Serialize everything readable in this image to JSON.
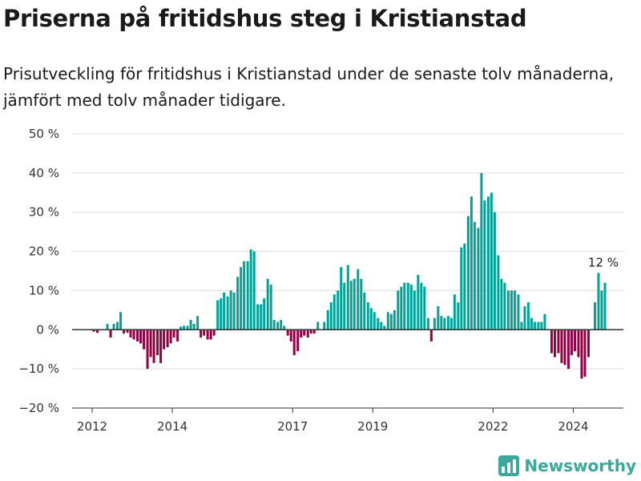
{
  "title": "Priserna på fritidshus steg i Kristianstad",
  "subtitle": "Prisutveckling för fritidshus i Kristianstad under de senaste tolv månaderna, jämfört med tolv månader tidigare.",
  "brand": {
    "name": "Newsworthy",
    "color": "#3aa89b"
  },
  "colors": {
    "positive": "#00a497",
    "negative": "#960042",
    "zero_line": "#333333",
    "grid": "#dddddd"
  },
  "chart_data": {
    "type": "bar",
    "title": "Priserna på fritidshus steg i Kristianstad",
    "xlabel": "",
    "ylabel": "",
    "ylim": [
      -20,
      50
    ],
    "yticks": [
      -20,
      -10,
      0,
      10,
      20,
      30,
      40,
      50
    ],
    "ytick_labels": [
      "−20 %",
      "−10 %",
      "0 %",
      "10 %",
      "20 %",
      "30 %",
      "40 %",
      "50 %"
    ],
    "xticks": [
      2012,
      2014,
      2017,
      2019,
      2022,
      2024
    ],
    "x_start": 2011.5,
    "x_end": 2025.25,
    "grid": true,
    "annotation": {
      "text": "12 %"
    },
    "bars": [
      {
        "x": 2012.04,
        "y": -0.5
      },
      {
        "x": 2012.13,
        "y": -0.8
      },
      {
        "x": 2012.38,
        "y": 1.5
      },
      {
        "x": 2012.46,
        "y": -2.0
      },
      {
        "x": 2012.54,
        "y": 1.5
      },
      {
        "x": 2012.63,
        "y": 2.0
      },
      {
        "x": 2012.71,
        "y": 4.5
      },
      {
        "x": 2012.79,
        "y": -1.0
      },
      {
        "x": 2012.88,
        "y": -0.8
      },
      {
        "x": 2012.96,
        "y": -2.0
      },
      {
        "x": 2013.04,
        "y": -2.5
      },
      {
        "x": 2013.13,
        "y": -3.0
      },
      {
        "x": 2013.21,
        "y": -3.5
      },
      {
        "x": 2013.29,
        "y": -5.0
      },
      {
        "x": 2013.38,
        "y": -10.0
      },
      {
        "x": 2013.46,
        "y": -7.0
      },
      {
        "x": 2013.54,
        "y": -8.5
      },
      {
        "x": 2013.63,
        "y": -6.5
      },
      {
        "x": 2013.71,
        "y": -8.5
      },
      {
        "x": 2013.79,
        "y": -5.0
      },
      {
        "x": 2013.88,
        "y": -4.5
      },
      {
        "x": 2013.96,
        "y": -3.5
      },
      {
        "x": 2014.04,
        "y": -2.0
      },
      {
        "x": 2014.13,
        "y": -3.0
      },
      {
        "x": 2014.21,
        "y": 0.8
      },
      {
        "x": 2014.29,
        "y": 1.0
      },
      {
        "x": 2014.38,
        "y": 1.0
      },
      {
        "x": 2014.46,
        "y": 2.5
      },
      {
        "x": 2014.54,
        "y": 1.5
      },
      {
        "x": 2014.63,
        "y": 3.5
      },
      {
        "x": 2014.71,
        "y": -2.0
      },
      {
        "x": 2014.79,
        "y": -1.5
      },
      {
        "x": 2014.88,
        "y": -2.5
      },
      {
        "x": 2014.96,
        "y": -2.5
      },
      {
        "x": 2015.04,
        "y": -1.5
      },
      {
        "x": 2015.13,
        "y": 7.5
      },
      {
        "x": 2015.21,
        "y": 8.0
      },
      {
        "x": 2015.29,
        "y": 9.5
      },
      {
        "x": 2015.38,
        "y": 8.5
      },
      {
        "x": 2015.46,
        "y": 10.0
      },
      {
        "x": 2015.54,
        "y": 9.5
      },
      {
        "x": 2015.63,
        "y": 13.5
      },
      {
        "x": 2015.71,
        "y": 16.0
      },
      {
        "x": 2015.79,
        "y": 17.5
      },
      {
        "x": 2015.88,
        "y": 17.5
      },
      {
        "x": 2015.96,
        "y": 20.5
      },
      {
        "x": 2016.04,
        "y": 20.0
      },
      {
        "x": 2016.13,
        "y": 6.5
      },
      {
        "x": 2016.21,
        "y": 6.5
      },
      {
        "x": 2016.29,
        "y": 8.0
      },
      {
        "x": 2016.38,
        "y": 13.0
      },
      {
        "x": 2016.46,
        "y": 11.5
      },
      {
        "x": 2016.54,
        "y": 2.5
      },
      {
        "x": 2016.63,
        "y": 2.0
      },
      {
        "x": 2016.71,
        "y": 2.5
      },
      {
        "x": 2016.79,
        "y": 1.0
      },
      {
        "x": 2016.88,
        "y": -1.5
      },
      {
        "x": 2016.96,
        "y": -3.0
      },
      {
        "x": 2017.04,
        "y": -6.5
      },
      {
        "x": 2017.13,
        "y": -5.5
      },
      {
        "x": 2017.21,
        "y": -2.0
      },
      {
        "x": 2017.29,
        "y": -1.5
      },
      {
        "x": 2017.38,
        "y": -2.0
      },
      {
        "x": 2017.46,
        "y": -1.0
      },
      {
        "x": 2017.54,
        "y": -1.0
      },
      {
        "x": 2017.63,
        "y": 2.0
      },
      {
        "x": 2017.79,
        "y": 2.0
      },
      {
        "x": 2017.88,
        "y": 5.0
      },
      {
        "x": 2017.96,
        "y": 7.0
      },
      {
        "x": 2018.04,
        "y": 9.0
      },
      {
        "x": 2018.13,
        "y": 10.0
      },
      {
        "x": 2018.21,
        "y": 16.0
      },
      {
        "x": 2018.29,
        "y": 12.0
      },
      {
        "x": 2018.38,
        "y": 16.5
      },
      {
        "x": 2018.46,
        "y": 12.5
      },
      {
        "x": 2018.54,
        "y": 13.0
      },
      {
        "x": 2018.63,
        "y": 15.5
      },
      {
        "x": 2018.71,
        "y": 13.0
      },
      {
        "x": 2018.79,
        "y": 9.5
      },
      {
        "x": 2018.88,
        "y": 7.0
      },
      {
        "x": 2018.96,
        "y": 5.5
      },
      {
        "x": 2019.04,
        "y": 4.5
      },
      {
        "x": 2019.13,
        "y": 3.0
      },
      {
        "x": 2019.21,
        "y": 2.0
      },
      {
        "x": 2019.29,
        "y": 1.0
      },
      {
        "x": 2019.38,
        "y": 4.5
      },
      {
        "x": 2019.46,
        "y": 4.0
      },
      {
        "x": 2019.54,
        "y": 5.0
      },
      {
        "x": 2019.63,
        "y": 10.0
      },
      {
        "x": 2019.71,
        "y": 11.0
      },
      {
        "x": 2019.79,
        "y": 12.0
      },
      {
        "x": 2019.88,
        "y": 12.0
      },
      {
        "x": 2019.96,
        "y": 11.5
      },
      {
        "x": 2020.04,
        "y": 10.0
      },
      {
        "x": 2020.13,
        "y": 14.0
      },
      {
        "x": 2020.21,
        "y": 12.0
      },
      {
        "x": 2020.29,
        "y": 11.0
      },
      {
        "x": 2020.38,
        "y": 3.0
      },
      {
        "x": 2020.46,
        "y": -3.0
      },
      {
        "x": 2020.54,
        "y": 3.0
      },
      {
        "x": 2020.63,
        "y": 6.0
      },
      {
        "x": 2020.71,
        "y": 3.5
      },
      {
        "x": 2020.79,
        "y": 3.0
      },
      {
        "x": 2020.88,
        "y": 3.5
      },
      {
        "x": 2020.96,
        "y": 3.0
      },
      {
        "x": 2021.04,
        "y": 9.0
      },
      {
        "x": 2021.13,
        "y": 7.0
      },
      {
        "x": 2021.21,
        "y": 21.0
      },
      {
        "x": 2021.29,
        "y": 22.0
      },
      {
        "x": 2021.38,
        "y": 29.0
      },
      {
        "x": 2021.46,
        "y": 34.0
      },
      {
        "x": 2021.54,
        "y": 27.5
      },
      {
        "x": 2021.63,
        "y": 26.0
      },
      {
        "x": 2021.71,
        "y": 40.0
      },
      {
        "x": 2021.79,
        "y": 33.0
      },
      {
        "x": 2021.88,
        "y": 34.0
      },
      {
        "x": 2021.96,
        "y": 35.0
      },
      {
        "x": 2022.04,
        "y": 30.0
      },
      {
        "x": 2022.13,
        "y": 19.0
      },
      {
        "x": 2022.21,
        "y": 13.0
      },
      {
        "x": 2022.29,
        "y": 12.0
      },
      {
        "x": 2022.38,
        "y": 10.0
      },
      {
        "x": 2022.46,
        "y": 10.0
      },
      {
        "x": 2022.54,
        "y": 10.0
      },
      {
        "x": 2022.63,
        "y": 9.0
      },
      {
        "x": 2022.71,
        "y": 2.0
      },
      {
        "x": 2022.79,
        "y": 6.0
      },
      {
        "x": 2022.88,
        "y": 7.0
      },
      {
        "x": 2022.96,
        "y": 3.0
      },
      {
        "x": 2023.04,
        "y": 2.0
      },
      {
        "x": 2023.13,
        "y": 2.0
      },
      {
        "x": 2023.21,
        "y": 2.0
      },
      {
        "x": 2023.29,
        "y": 4.0
      },
      {
        "x": 2023.46,
        "y": -6.0
      },
      {
        "x": 2023.54,
        "y": -7.0
      },
      {
        "x": 2023.63,
        "y": -6.0
      },
      {
        "x": 2023.71,
        "y": -8.5
      },
      {
        "x": 2023.79,
        "y": -9.0
      },
      {
        "x": 2023.88,
        "y": -10.0
      },
      {
        "x": 2023.96,
        "y": -6.5
      },
      {
        "x": 2024.04,
        "y": -5.5
      },
      {
        "x": 2024.13,
        "y": -7.0
      },
      {
        "x": 2024.21,
        "y": -12.5
      },
      {
        "x": 2024.29,
        "y": -12.0
      },
      {
        "x": 2024.38,
        "y": -7.0
      },
      {
        "x": 2024.54,
        "y": 7.0
      },
      {
        "x": 2024.63,
        "y": 14.5
      },
      {
        "x": 2024.71,
        "y": 10.0
      },
      {
        "x": 2024.79,
        "y": 12.0
      }
    ]
  }
}
